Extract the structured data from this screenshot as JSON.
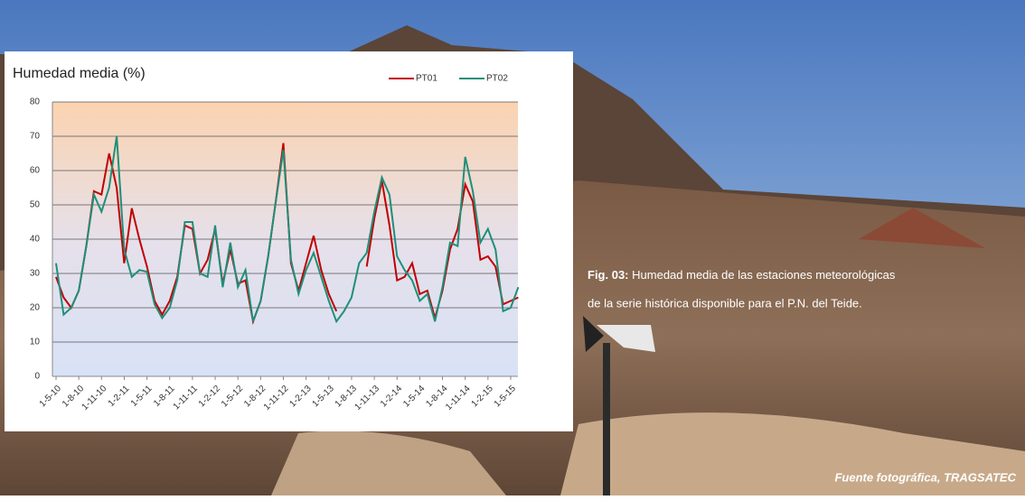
{
  "chart_data": {
    "type": "line",
    "title": "Humedad media (%)",
    "categories": [
      "1-5-10",
      null,
      null,
      "1-8-10",
      null,
      null,
      "1-11-10",
      null,
      null,
      "1-2-11",
      null,
      null,
      "1-5-11",
      null,
      null,
      "1-8-11",
      null,
      null,
      "1-11-11",
      null,
      null,
      "1-2-12",
      null,
      null,
      "1-5-12",
      null,
      null,
      "1-8-12",
      null,
      null,
      "1-11-12",
      null,
      null,
      "1-2-13",
      null,
      null,
      "1-5-13",
      null,
      null,
      "1-8-13",
      null,
      null,
      "1-11-13",
      null,
      null,
      "1-2-14",
      null,
      null,
      "1-5-14",
      null,
      null,
      "1-8-14",
      null,
      null,
      "1-11-14",
      null,
      null,
      "1-2-15",
      null,
      null,
      "1-5-15",
      null
    ],
    "series": [
      {
        "name": "PT01",
        "color": "#c00000",
        "values": [
          29,
          23,
          20,
          25,
          38,
          54,
          53,
          65,
          55,
          33,
          49,
          40,
          32,
          22,
          18,
          22,
          29,
          44,
          43,
          30,
          34,
          43,
          27,
          37,
          27,
          28,
          16,
          22,
          35,
          51,
          68,
          33,
          25,
          33,
          41,
          31,
          24,
          19,
          null,
          null,
          null,
          32,
          46,
          57,
          44,
          28,
          29,
          33,
          24,
          25,
          17,
          25,
          37,
          43,
          56,
          51,
          34,
          35,
          32,
          21,
          22,
          23
        ]
      },
      {
        "name": "PT02",
        "color": "#1f8f7a",
        "values": [
          33,
          18,
          20,
          25,
          38,
          53,
          48,
          55,
          70,
          37,
          29,
          31,
          30.5,
          21,
          17,
          20,
          28,
          45,
          45,
          30,
          29,
          44,
          26,
          39,
          26,
          31,
          16,
          22,
          35,
          51,
          66,
          34,
          24,
          31,
          36,
          29,
          22,
          16,
          19,
          23,
          33,
          36,
          48,
          58,
          53,
          35,
          31,
          28,
          22,
          24,
          16,
          26,
          39,
          38,
          64,
          54,
          39,
          43,
          37,
          19,
          20,
          26
        ]
      }
    ],
    "ylim": [
      0,
      80
    ],
    "yticks": [
      0,
      10,
      20,
      30,
      40,
      50,
      60,
      70,
      80
    ],
    "grid": true,
    "legend": "top-right"
  },
  "caption": {
    "label": "Fig. 03:",
    "lines": [
      "Humedad media de las estaciones meteorológicas",
      "de la serie histórica disponible para el P.N. del Teide."
    ]
  },
  "credit": "Fuente fotográfica, TRAGSATEC"
}
